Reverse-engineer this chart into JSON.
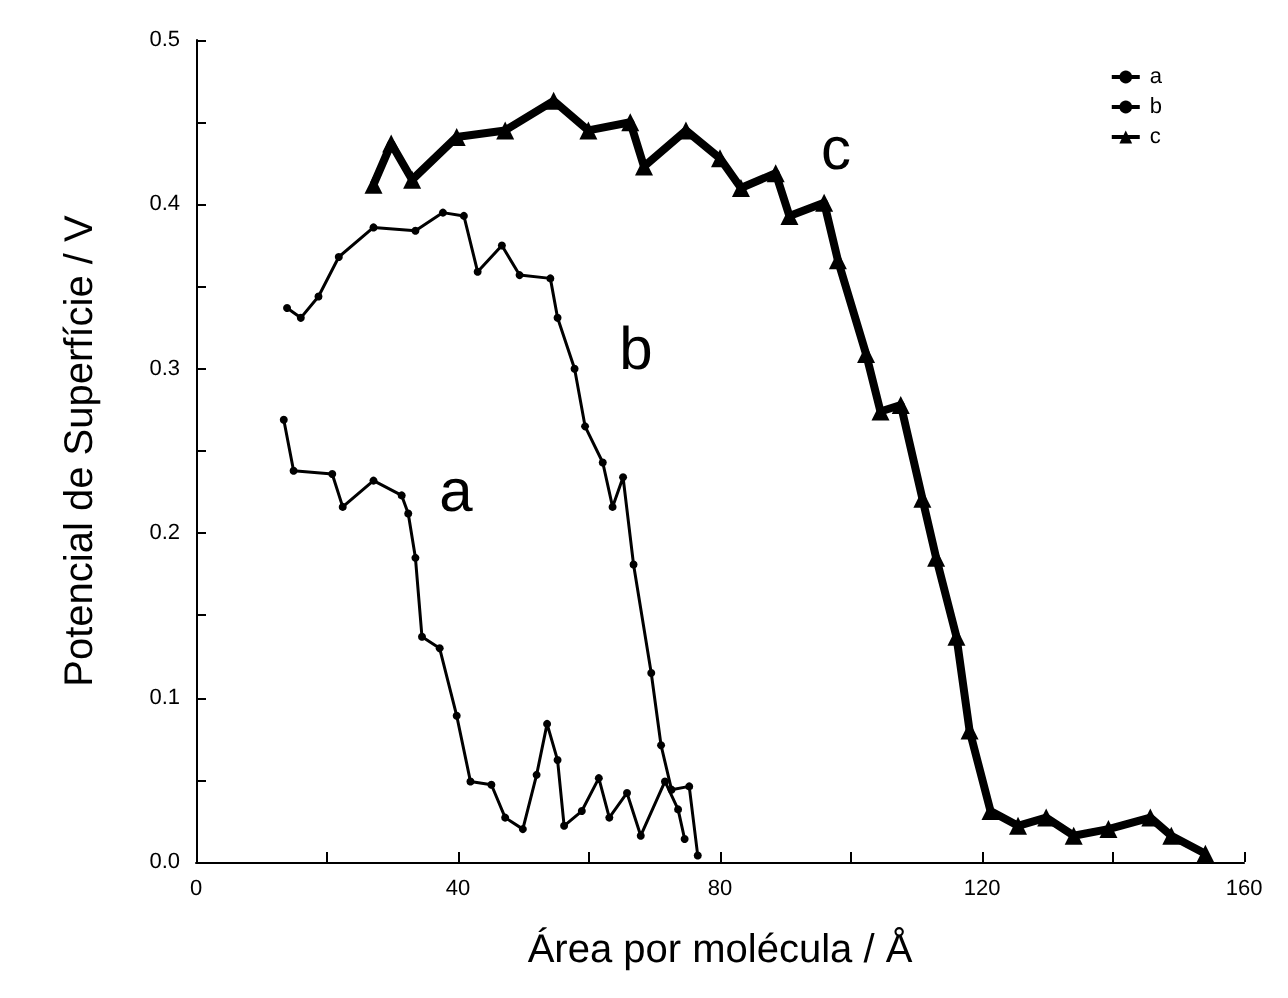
{
  "chart_data": {
    "type": "line",
    "xlabel": "Área por molécula / Å",
    "ylabel": "Potencial de Superfície / V",
    "xlim": [
      0,
      160
    ],
    "xticks": [
      0,
      40,
      80,
      120,
      160
    ],
    "ylim": [
      0,
      0.5
    ],
    "yticks": [
      {
        "value": 0,
        "label": "0.0"
      },
      {
        "value": 0.1,
        "label": "0.1"
      },
      {
        "value": 0.2,
        "label": "0.2"
      },
      {
        "value": 0.3,
        "label": "0.3"
      },
      {
        "value": 0.4,
        "label": "0.4"
      },
      {
        "value": 0.5,
        "label": "0.5"
      }
    ],
    "grid": false,
    "legend": "top right",
    "annotations": [
      "a",
      "b",
      "c"
    ],
    "series": [
      {
        "name": "a",
        "color": "#000000",
        "marker": "circle",
        "x": [
          13.4,
          14.9,
          20.8,
          22.4,
          27.1,
          31.4,
          32.4,
          33.5,
          34.5,
          37.2,
          39.8,
          41.9,
          45.1,
          47.2,
          49.9,
          52,
          53.6,
          55.2,
          56.2,
          58.9,
          61.5,
          63.1,
          65.8,
          67.9,
          71.6,
          73.6,
          74.6
        ],
        "values": [
          0.269,
          0.238,
          0.236,
          0.216,
          0.232,
          0.223,
          0.212,
          0.185,
          0.137,
          0.13,
          0.089,
          0.049,
          0.047,
          0.027,
          0.02,
          0.053,
          0.084,
          0.062,
          0.022,
          0.031,
          0.051,
          0.027,
          0.042,
          0.016,
          0.049,
          0.032,
          0.014
        ]
      },
      {
        "name": "b",
        "color": "#000000",
        "marker": "circle",
        "x": [
          13.9,
          16,
          18.7,
          21.8,
          27.1,
          33.5,
          37.7,
          40.9,
          43,
          46.7,
          49.4,
          54.1,
          55.2,
          57.8,
          59.4,
          62.1,
          63.6,
          65.2,
          66.8,
          69.5,
          71,
          72.6,
          75.3,
          76.6
        ],
        "values": [
          0.337,
          0.331,
          0.344,
          0.368,
          0.386,
          0.384,
          0.395,
          0.393,
          0.359,
          0.375,
          0.357,
          0.355,
          0.331,
          0.3,
          0.265,
          0.243,
          0.216,
          0.234,
          0.181,
          0.115,
          0.071,
          0.044,
          0.046,
          0.004
        ]
      },
      {
        "name": "c",
        "color": "#000000",
        "marker": "triangle",
        "x": [
          27.1,
          29.8,
          33,
          39.8,
          47.2,
          54.6,
          59.9,
          66.3,
          68.4,
          74.8,
          80,
          83.2,
          88.5,
          90.6,
          95.9,
          98,
          102.3,
          104.5,
          107.6,
          110.9,
          113,
          116.1,
          118.1,
          121.3,
          125.5,
          129.8,
          134,
          139.3,
          145.7,
          148.9,
          154.1
        ],
        "values": [
          0.412,
          0.437,
          0.415,
          0.441,
          0.445,
          0.463,
          0.445,
          0.45,
          0.423,
          0.445,
          0.428,
          0.41,
          0.419,
          0.393,
          0.401,
          0.366,
          0.309,
          0.274,
          0.278,
          0.221,
          0.185,
          0.137,
          0.08,
          0.031,
          0.022,
          0.027,
          0.016,
          0.02,
          0.027,
          0.016,
          0.005
        ]
      }
    ]
  }
}
